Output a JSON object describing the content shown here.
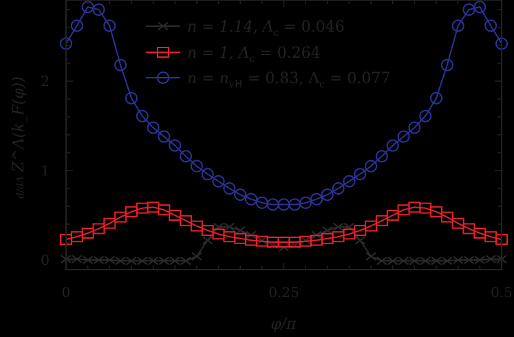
{
  "chart_data": {
    "type": "line",
    "title": "",
    "xlabel": "φ/π",
    "ylabel": "d/dΛ Z^Λ(k_F(φ))",
    "xlim": [
      0,
      0.5
    ],
    "ylim": [
      -0.1,
      2.9
    ],
    "x_ticks": [
      0,
      0.25,
      0.5
    ],
    "x_tick_labels": [
      "0",
      "0.25",
      "0.5"
    ],
    "y_ticks": [
      0,
      1,
      2
    ],
    "y_tick_labels": [
      "0",
      "1",
      "2"
    ],
    "grid": false,
    "legend_position": "upper center",
    "x": [
      0,
      0.0125,
      0.025,
      0.0375,
      0.05,
      0.0625,
      0.075,
      0.0875,
      0.1,
      0.1125,
      0.125,
      0.1375,
      0.15,
      0.1625,
      0.175,
      0.1875,
      0.2,
      0.2125,
      0.225,
      0.2375,
      0.25,
      0.2625,
      0.275,
      0.2875,
      0.3,
      0.3125,
      0.325,
      0.3375,
      0.35,
      0.3625,
      0.375,
      0.3875,
      0.4,
      0.4125,
      0.425,
      0.4375,
      0.45,
      0.4625,
      0.475,
      0.4875,
      0.5
    ],
    "series": [
      {
        "name": "n = 1.14, Λc = 0.046",
        "color": "#2b2b2b",
        "marker": "x",
        "values": [
          0.01,
          0.01,
          0.0,
          0.0,
          0.0,
          -0.01,
          -0.01,
          -0.01,
          -0.01,
          -0.01,
          -0.01,
          -0.01,
          0.04,
          0.22,
          0.37,
          0.37,
          0.33,
          0.28,
          0.22,
          0.17,
          0.14,
          0.17,
          0.22,
          0.28,
          0.33,
          0.37,
          0.37,
          0.22,
          0.04,
          -0.01,
          -0.01,
          -0.01,
          -0.01,
          -0.01,
          -0.01,
          -0.01,
          0.0,
          0.0,
          0.0,
          0.01,
          0.01
        ]
      },
      {
        "name": "n = 1, Λc = 0.264",
        "color": "#e8202a",
        "marker": "s",
        "values": [
          0.23,
          0.26,
          0.3,
          0.35,
          0.41,
          0.48,
          0.54,
          0.58,
          0.59,
          0.56,
          0.5,
          0.44,
          0.38,
          0.33,
          0.29,
          0.26,
          0.24,
          0.22,
          0.21,
          0.2,
          0.2,
          0.2,
          0.21,
          0.22,
          0.24,
          0.26,
          0.29,
          0.33,
          0.38,
          0.44,
          0.5,
          0.56,
          0.59,
          0.58,
          0.54,
          0.48,
          0.41,
          0.35,
          0.3,
          0.26,
          0.23
        ]
      },
      {
        "name": "n = n_vH = 0.83, Λc = 0.077",
        "color": "#2b3399",
        "marker": "o",
        "values": [
          2.42,
          2.62,
          2.83,
          2.8,
          2.62,
          2.18,
          1.81,
          1.61,
          1.48,
          1.38,
          1.28,
          1.16,
          1.05,
          0.96,
          0.88,
          0.8,
          0.73,
          0.68,
          0.64,
          0.62,
          0.62,
          0.62,
          0.64,
          0.68,
          0.73,
          0.8,
          0.88,
          0.96,
          1.05,
          1.16,
          1.28,
          1.38,
          1.48,
          1.61,
          1.81,
          2.18,
          2.62,
          2.8,
          2.83,
          2.62,
          2.42
        ]
      }
    ]
  },
  "legend": {
    "items": [
      {
        "label_main": "n = 1.14, Λ",
        "label_sub": "c",
        "label_tail": " = 0.046"
      },
      {
        "label_main": "n = 1, Λ",
        "label_sub": "c",
        "label_tail": " = 0.264"
      },
      {
        "label_main": "n = n",
        "label_sub": "vH",
        "label_tail": " = 0.83, Λ",
        "label_sub2": "c",
        "label_tail2": " = 0.077"
      }
    ]
  },
  "axes": {
    "xlabel": "φ/π",
    "ylabel_prefix": "d/dΛ",
    "ylabel_main": "Z^Λ(k_F(φ))"
  }
}
